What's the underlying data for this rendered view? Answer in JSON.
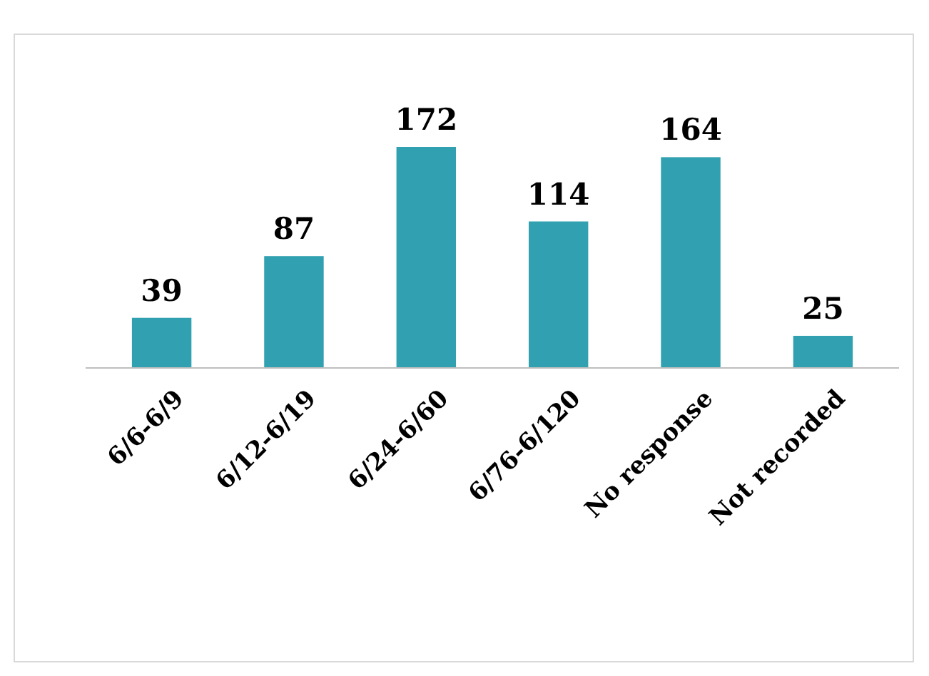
{
  "chart_data": {
    "type": "bar",
    "categories": [
      "6/6-6/9",
      "6/12-6/19",
      "6/24-6/60",
      "6/76-6/120",
      "No response",
      "Not recorded"
    ],
    "values": [
      39,
      87,
      172,
      114,
      164,
      25
    ],
    "color": "#31a0b0",
    "data_labels": true
  }
}
